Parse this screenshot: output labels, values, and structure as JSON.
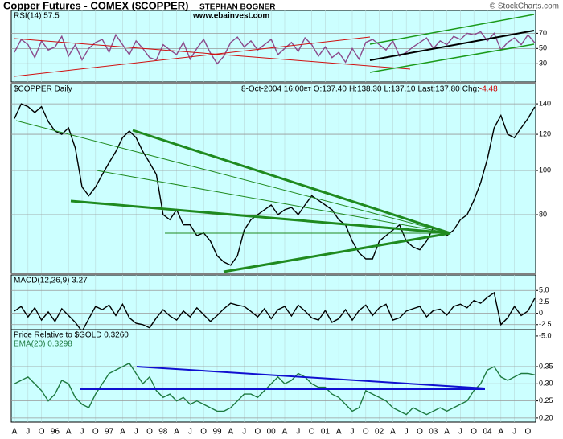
{
  "header": {
    "title": "Copper Futures - COMEX ($COPPER)",
    "author": "STEPHAN BOGNER",
    "website": "www.ebainvest.com",
    "credit": "© StockCharts.com"
  },
  "chart_data": [
    {
      "type": "line",
      "title": "RSI(14) 57.5",
      "color": "#8b4a8b",
      "ylim": [
        6,
        100
      ],
      "yticks": [
        70,
        50,
        30
      ],
      "grid": true,
      "values": [
        45,
        62,
        55,
        38,
        60,
        48,
        52,
        66,
        40,
        55,
        35,
        50,
        58,
        62,
        45,
        68,
        55,
        42,
        60,
        50,
        38,
        35,
        55,
        48,
        42,
        58,
        36,
        50,
        62,
        44,
        30,
        40,
        58,
        65,
        52,
        60,
        48,
        55,
        62,
        42,
        50,
        58,
        46,
        64,
        55,
        40,
        52,
        38,
        45,
        32,
        50,
        36,
        58,
        62,
        55,
        48,
        60,
        40,
        45,
        52,
        58,
        64,
        50,
        60,
        55,
        66,
        62,
        70,
        68,
        72,
        60,
        70,
        48,
        58,
        64,
        55,
        68,
        57.5
      ]
    },
    {
      "type": "line",
      "title": "$COPPER Daily",
      "quote": [
        "8-Oct-2004 16:00",
        "ET",
        "O:137.40",
        "H:138.30",
        "L:137.10",
        "Last:137.80",
        "Chg:",
        "-4.48"
      ],
      "color": "#000000",
      "log_scale": true,
      "ylim": [
        59.5,
        155
      ],
      "yticks": [
        140,
        120,
        100,
        80
      ],
      "grid": true,
      "values": [
        130,
        140,
        138,
        134,
        138,
        128,
        122,
        120,
        124,
        112,
        92,
        88,
        92,
        98,
        104,
        110,
        118,
        122,
        118,
        110,
        104,
        98,
        80,
        78,
        82,
        76,
        76,
        72,
        73,
        70,
        65,
        63,
        62,
        65,
        74,
        78,
        80,
        82,
        84,
        80,
        82,
        83,
        80,
        84,
        88,
        86,
        84,
        82,
        78,
        76,
        70,
        66,
        64,
        64,
        70,
        72,
        74,
        76,
        70,
        68,
        67,
        70,
        75,
        74,
        72,
        74,
        78,
        80,
        86,
        94,
        106,
        124,
        132,
        120,
        118,
        124,
        130,
        137.8
      ]
    },
    {
      "type": "line",
      "title": "MACD(12,26,9) 3.27",
      "color": "#000000",
      "ylim": [
        -3.6,
        8.4
      ],
      "yticks": [
        {
          "value": 5,
          "label": "5.0"
        },
        2.5,
        0,
        -2.5,
        {
          "value": -5,
          "label": "-5.0"
        }
      ],
      "grid": true,
      "values": [
        0.5,
        1.5,
        -0.8,
        1.2,
        -1.5,
        0.3,
        -1.8,
        1.0,
        -0.5,
        -2.0,
        -4.0,
        -1.2,
        1.5,
        0.8,
        1.8,
        -0.5,
        2.0,
        -1.0,
        -2.2,
        -2.5,
        -3.2,
        -1.0,
        0.8,
        -0.6,
        -1.5,
        0.5,
        -0.8,
        1.2,
        -0.3,
        -1.8,
        -0.5,
        1.0,
        2.2,
        1.8,
        1.5,
        0.4,
        -0.8,
        1.0,
        -1.2,
        0.8,
        1.5,
        -0.6,
        1.8,
        0.5,
        -1.0,
        -1.5,
        0.6,
        -2.0,
        -1.2,
        0.8,
        -1.5,
        0.6,
        1.8,
        -0.5,
        1.2,
        2.0,
        -1.5,
        -1.0,
        0.5,
        1.0,
        1.5,
        -0.8,
        0.6,
        0.9,
        -0.4,
        1.5,
        2.0,
        1.2,
        2.8,
        2.2,
        3.5,
        4.5,
        -2.5,
        -1.0,
        1.5,
        -0.5,
        0.5,
        3.27
      ]
    },
    {
      "type": "line",
      "title": "Price Relative to $GOLD 0.3260",
      "annotation": "EMA(20) 0.3298",
      "color": "#1e7a40",
      "ylim": [
        0.188,
        0.458
      ],
      "yticks": [
        0.35,
        {
          "value": 0.3,
          "label": "0.30"
        },
        0.25,
        {
          "value": 0.2,
          "label": "0.20"
        }
      ],
      "grid": true,
      "categories": [
        "A",
        null,
        "J",
        null,
        "O",
        null,
        "96",
        null,
        "A",
        null,
        "J",
        null,
        "O",
        null,
        "97",
        null,
        "A",
        null,
        "J",
        null,
        "O",
        null,
        "98",
        null,
        "A",
        null,
        "J",
        null,
        "O",
        null,
        "99",
        null,
        "A",
        null,
        "J",
        null,
        "O",
        null,
        "00",
        null,
        "A",
        null,
        "J",
        null,
        "O",
        null,
        "01",
        null,
        "A",
        null,
        "J",
        null,
        "O",
        null,
        "02",
        null,
        "A",
        null,
        "J",
        null,
        "O",
        null,
        "03",
        null,
        "A",
        null,
        "J",
        null,
        "O",
        null,
        "04",
        null,
        "A",
        null,
        "J",
        null,
        "O",
        null
      ],
      "values": [
        0.3,
        0.31,
        0.32,
        0.3,
        0.28,
        0.25,
        0.27,
        0.31,
        0.3,
        0.26,
        0.24,
        0.23,
        0.27,
        0.3,
        0.33,
        0.34,
        0.35,
        0.36,
        0.33,
        0.3,
        0.32,
        0.28,
        0.26,
        0.27,
        0.25,
        0.26,
        0.24,
        0.25,
        0.24,
        0.23,
        0.22,
        0.22,
        0.23,
        0.25,
        0.27,
        0.27,
        0.26,
        0.28,
        0.3,
        0.32,
        0.3,
        0.31,
        0.33,
        0.32,
        0.3,
        0.29,
        0.29,
        0.27,
        0.26,
        0.24,
        0.22,
        0.23,
        0.28,
        0.27,
        0.26,
        0.25,
        0.23,
        0.22,
        0.21,
        0.23,
        0.22,
        0.21,
        0.22,
        0.23,
        0.22,
        0.23,
        0.24,
        0.25,
        0.28,
        0.3,
        0.34,
        0.35,
        0.32,
        0.31,
        0.32,
        0.33,
        0.33,
        0.326
      ]
    }
  ]
}
